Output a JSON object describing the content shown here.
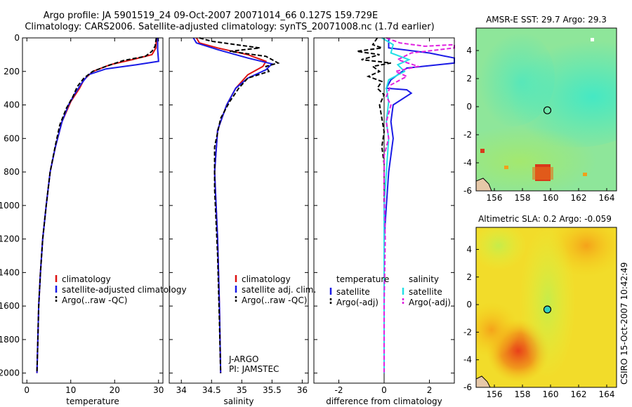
{
  "header": {
    "title_line1": "Argo profile: JA 5901519_24 09-Oct-2007 20071014_66 0.127S 159.729E",
    "title_line2": "Climatology: CARS2006. Satellite-adjusted climatology: synTS_20071008.nc (1.7d earlier)"
  },
  "footer": {
    "stamp": "CSIRO 15-Oct-2007 10:42:49"
  },
  "colors": {
    "climatology": "#dd1111",
    "satellite": "#1a1ae6",
    "argo": "#000000",
    "cyan": "#22e0e6",
    "magenta": "#e020e0"
  },
  "chart_data": [
    {
      "type": "line",
      "xlabel": "temperature",
      "ylabel": "",
      "xlim": [
        -1,
        31
      ],
      "ylim": [
        2060,
        0
      ],
      "y_reversed": true,
      "xticks": [
        0,
        10,
        20,
        30
      ],
      "yticks": [
        0,
        200,
        400,
        600,
        800,
        1000,
        1200,
        1400,
        1600,
        1800,
        2000
      ],
      "legend_loc": "lower right",
      "legend": [
        "climatology",
        "satellite-adjusted climatology",
        "Argo(..raw -QC)"
      ],
      "series": [
        {
          "name": "climatology",
          "dash": false,
          "pts": [
            [
              29.5,
              0
            ],
            [
              29.4,
              60
            ],
            [
              28.5,
              100
            ],
            [
              24,
              130
            ],
            [
              19,
              160
            ],
            [
              15,
              200
            ],
            [
              13,
              250
            ],
            [
              12,
              300
            ],
            [
              10,
              380
            ],
            [
              8,
              500
            ],
            [
              6.5,
              650
            ],
            [
              5.3,
              800
            ],
            [
              4.4,
              1000
            ],
            [
              3.6,
              1200
            ],
            [
              3.1,
              1400
            ],
            [
              2.7,
              1600
            ],
            [
              2.5,
              1800
            ],
            [
              2.3,
              2000
            ]
          ]
        },
        {
          "name": "satellite-adjusted climatology",
          "dash": false,
          "pts": [
            [
              29.8,
              0
            ],
            [
              29.8,
              70
            ],
            [
              30,
              140
            ],
            [
              25,
              160
            ],
            [
              18,
              185
            ],
            [
              14,
              220
            ],
            [
              12.5,
              270
            ],
            [
              11,
              330
            ],
            [
              9.5,
              400
            ],
            [
              8,
              500
            ],
            [
              6.5,
              650
            ],
            [
              5.3,
              800
            ],
            [
              4.4,
              1000
            ],
            [
              3.6,
              1200
            ],
            [
              3.1,
              1400
            ],
            [
              2.7,
              1600
            ],
            [
              2.5,
              1800
            ],
            [
              2.3,
              2000
            ]
          ]
        },
        {
          "name": "Argo(..raw -QC)",
          "dash": true,
          "pts": [
            [
              29.5,
              0
            ],
            [
              29.2,
              50
            ],
            [
              28.5,
              80
            ],
            [
              27,
              110
            ],
            [
              22,
              135
            ],
            [
              18,
              170
            ],
            [
              15,
              200
            ],
            [
              13,
              240
            ],
            [
              11.5,
              290
            ],
            [
              10.5,
              350
            ],
            [
              9,
              420
            ],
            [
              7.5,
              520
            ],
            [
              6.5,
              640
            ],
            [
              5.3,
              800
            ],
            [
              4.4,
              1000
            ],
            [
              3.6,
              1200
            ],
            [
              3.1,
              1400
            ],
            [
              2.7,
              1600
            ],
            [
              2.5,
              1800
            ],
            [
              2.3,
              2000
            ]
          ]
        }
      ]
    },
    {
      "type": "line",
      "xlabel": "salinity",
      "ylabel": "",
      "xlim": [
        33.8,
        36.1
      ],
      "ylim": [
        2060,
        0
      ],
      "y_reversed": true,
      "xticks": [
        34,
        34.5,
        35,
        35.5,
        36
      ],
      "legend_loc": "lower right",
      "legend": [
        "climatology",
        "satellite adj. clim.",
        "Argo(..raw -QC)"
      ],
      "annotations": [
        "J-ARGO",
        "PI: JAMSTEC"
      ],
      "series": [
        {
          "name": "climatology",
          "dash": false,
          "pts": [
            [
              34.25,
              0
            ],
            [
              34.3,
              30
            ],
            [
              34.6,
              60
            ],
            [
              35.1,
              100
            ],
            [
              35.4,
              140
            ],
            [
              35.35,
              170
            ],
            [
              35.1,
              220
            ],
            [
              34.9,
              300
            ],
            [
              34.75,
              400
            ],
            [
              34.6,
              550
            ],
            [
              34.55,
              800
            ],
            [
              34.6,
              1200
            ],
            [
              34.63,
              1600
            ],
            [
              34.65,
              2000
            ]
          ]
        },
        {
          "name": "satellite adj. clim.",
          "dash": false,
          "pts": [
            [
              34.2,
              0
            ],
            [
              34.25,
              30
            ],
            [
              34.6,
              70
            ],
            [
              35.1,
              120
            ],
            [
              35.5,
              155
            ],
            [
              35.4,
              190
            ],
            [
              35.1,
              240
            ],
            [
              34.9,
              300
            ],
            [
              34.75,
              400
            ],
            [
              34.6,
              550
            ],
            [
              34.55,
              800
            ],
            [
              34.6,
              1200
            ],
            [
              34.63,
              1600
            ],
            [
              34.65,
              2000
            ]
          ]
        },
        {
          "name": "Argo(..raw -QC)",
          "dash": true,
          "pts": [
            [
              34.3,
              0
            ],
            [
              34.5,
              20
            ],
            [
              34.9,
              40
            ],
            [
              35.3,
              60
            ],
            [
              34.8,
              80
            ],
            [
              35.4,
              110
            ],
            [
              35.6,
              150
            ],
            [
              35.4,
              170
            ],
            [
              35.45,
              200
            ],
            [
              35.1,
              240
            ],
            [
              34.95,
              300
            ],
            [
              34.8,
              380
            ],
            [
              34.65,
              480
            ],
            [
              34.55,
              650
            ],
            [
              34.55,
              900
            ],
            [
              34.6,
              1300
            ],
            [
              34.63,
              1700
            ],
            [
              34.65,
              2000
            ]
          ]
        }
      ]
    },
    {
      "type": "line",
      "xlabel": "difference from climatology",
      "ylabel": "",
      "xlim": [
        -3.1,
        3.1
      ],
      "ylim": [
        2060,
        0
      ],
      "y_reversed": true,
      "xticks": [
        -2,
        0,
        2
      ],
      "legend_loc": "lower right",
      "legend_headers": [
        "temperature",
        "salinity"
      ],
      "legend": [
        "satellite",
        "Argo(-adj)",
        "satellite",
        "Argo(-adj)"
      ],
      "series": [
        {
          "name": "temperature satellite",
          "dash": false,
          "color": "blue",
          "pts": [
            [
              0.2,
              0
            ],
            [
              0.2,
              60
            ],
            [
              2,
              90
            ],
            [
              3.1,
              120
            ],
            [
              3.1,
              150
            ],
            [
              1,
              180
            ],
            [
              0.3,
              250
            ],
            [
              0.1,
              300
            ],
            [
              1,
              310
            ],
            [
              1.2,
              330
            ],
            [
              0.4,
              400
            ],
            [
              0.3,
              500
            ],
            [
              0.4,
              600
            ],
            [
              0.3,
              700
            ],
            [
              0.2,
              800
            ],
            [
              0.1,
              1000
            ],
            [
              0,
              1200
            ],
            [
              0,
              1500
            ],
            [
              0,
              2000
            ]
          ]
        },
        {
          "name": "temperature Argo(-adj)",
          "dash": true,
          "color": "black",
          "pts": [
            [
              -0.3,
              0
            ],
            [
              -0.5,
              40
            ],
            [
              -0.1,
              60
            ],
            [
              -1.2,
              80
            ],
            [
              -0.2,
              100
            ],
            [
              -1,
              130
            ],
            [
              0.3,
              150
            ],
            [
              -0.5,
              170
            ],
            [
              -0.2,
              200
            ],
            [
              -0.7,
              230
            ],
            [
              -0.1,
              260
            ],
            [
              -0.3,
              300
            ],
            [
              0,
              340
            ],
            [
              -0.2,
              400
            ],
            [
              -0.1,
              480
            ],
            [
              0,
              560
            ],
            [
              -0.1,
              650
            ],
            [
              0,
              750
            ],
            [
              0,
              900
            ],
            [
              0,
              1200
            ],
            [
              0,
              1600
            ],
            [
              0,
              2000
            ]
          ]
        },
        {
          "name": "salinity satellite",
          "dash": false,
          "color": "cyan",
          "pts": [
            [
              -0.1,
              0
            ],
            [
              0.4,
              40
            ],
            [
              0.3,
              90
            ],
            [
              1.1,
              130
            ],
            [
              0.6,
              160
            ],
            [
              0.9,
              200
            ],
            [
              0.2,
              250
            ],
            [
              0.1,
              300
            ],
            [
              0.2,
              380
            ],
            [
              0.1,
              500
            ],
            [
              0.2,
              600
            ],
            [
              0.1,
              800
            ],
            [
              0,
              1000
            ],
            [
              0,
              1400
            ],
            [
              0,
              2000
            ]
          ]
        },
        {
          "name": "salinity Argo(-adj)",
          "dash": true,
          "color": "magenta",
          "pts": [
            [
              0.1,
              0
            ],
            [
              0.7,
              30
            ],
            [
              1.8,
              50
            ],
            [
              3.1,
              40
            ],
            [
              3.1,
              60
            ],
            [
              1.2,
              90
            ],
            [
              0.6,
              130
            ],
            [
              1.5,
              170
            ],
            [
              0.5,
              200
            ],
            [
              1,
              230
            ],
            [
              0.3,
              280
            ],
            [
              0.1,
              350
            ],
            [
              0.3,
              400
            ],
            [
              0.1,
              500
            ],
            [
              0.2,
              600
            ],
            [
              0,
              700
            ],
            [
              0,
              900
            ],
            [
              0.05,
              1200
            ],
            [
              0,
              1600
            ],
            [
              0,
              2000
            ]
          ]
        }
      ]
    },
    {
      "type": "heatmap",
      "title": "AMSR-E SST: 29.7 Argo: 29.3",
      "xlim": [
        154.7,
        164.7
      ],
      "ylim": [
        -6,
        5.6
      ],
      "xticks": [
        156,
        158,
        160,
        162,
        164
      ],
      "yticks": [
        -6,
        -4,
        -2,
        0,
        2,
        4
      ],
      "marker": {
        "lon": 159.729,
        "lat": -0.127
      }
    },
    {
      "type": "heatmap",
      "title": "Altimetric SLA: 0.2 Argo: -0.059",
      "xlim": [
        154.7,
        164.7
      ],
      "ylim": [
        -6,
        5.6
      ],
      "xticks": [
        156,
        158,
        160,
        162,
        164
      ],
      "yticks": [
        -6,
        -4,
        -2,
        0,
        2,
        4
      ],
      "marker": {
        "lon": 159.729,
        "lat": -0.127
      }
    }
  ]
}
